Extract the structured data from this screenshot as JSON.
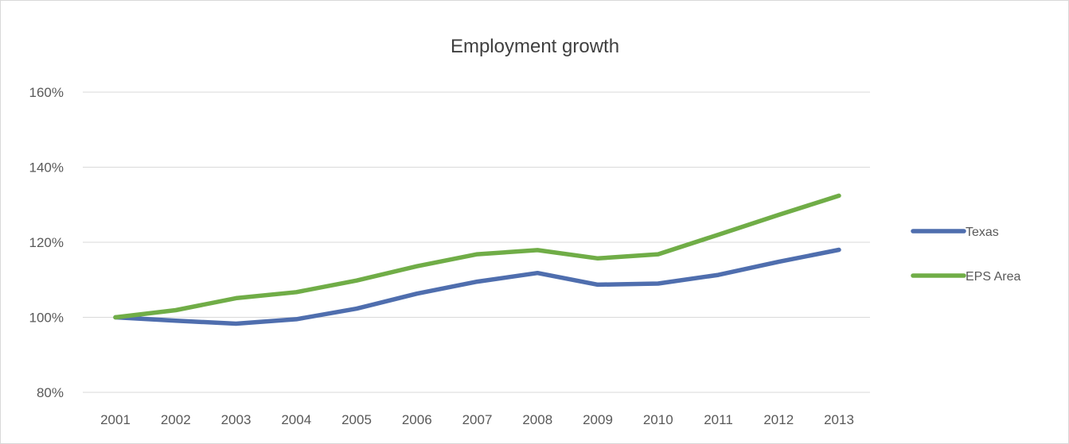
{
  "chart_data": {
    "type": "line",
    "title": "Employment growth",
    "xlabel": "",
    "ylabel": "",
    "categories": [
      "2001",
      "2002",
      "2003",
      "2004",
      "2005",
      "2006",
      "2007",
      "2008",
      "2009",
      "2010",
      "2011",
      "2012",
      "2013"
    ],
    "ylim": [
      80,
      160
    ],
    "yticks": [
      80,
      100,
      120,
      140,
      160
    ],
    "ytick_labels": [
      "80%",
      "100%",
      "120%",
      "140%",
      "160%"
    ],
    "grid": true,
    "legend_position": "right",
    "series": [
      {
        "name": "Texas",
        "color": "#4f6eae",
        "values": [
          100,
          99.1,
          98.3,
          99.5,
          102.3,
          106.3,
          109.5,
          111.8,
          108.7,
          109.0,
          111.3,
          114.8,
          118.0
        ]
      },
      {
        "name": "EPS Area",
        "color": "#70ad47",
        "values": [
          100,
          101.9,
          105.1,
          106.7,
          109.8,
          113.6,
          116.8,
          117.9,
          115.7,
          116.8,
          122.0,
          127.3,
          132.4
        ]
      }
    ]
  }
}
